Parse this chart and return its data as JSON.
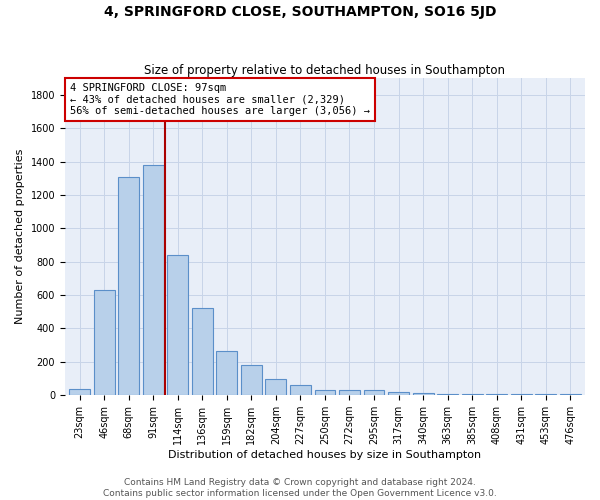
{
  "title": "4, SPRINGFORD CLOSE, SOUTHAMPTON, SO16 5JD",
  "subtitle": "Size of property relative to detached houses in Southampton",
  "xlabel": "Distribution of detached houses by size in Southampton",
  "ylabel": "Number of detached properties",
  "categories": [
    "23sqm",
    "46sqm",
    "68sqm",
    "91sqm",
    "114sqm",
    "136sqm",
    "159sqm",
    "182sqm",
    "204sqm",
    "227sqm",
    "250sqm",
    "272sqm",
    "295sqm",
    "317sqm",
    "340sqm",
    "363sqm",
    "385sqm",
    "408sqm",
    "431sqm",
    "453sqm",
    "476sqm"
  ],
  "values": [
    40,
    630,
    1310,
    1380,
    840,
    525,
    265,
    180,
    100,
    60,
    30,
    30,
    30,
    20,
    15,
    10,
    5,
    5,
    5,
    5,
    5
  ],
  "bar_color": "#b8d0ea",
  "bar_edge_color": "#5b8fc9",
  "marker_label": "4 SPRINGFORD CLOSE: 97sqm",
  "annotation_line1": "← 43% of detached houses are smaller (2,329)",
  "annotation_line2": "56% of semi-detached houses are larger (3,056) →",
  "annotation_box_color": "#ffffff",
  "annotation_box_edgecolor": "#cc0000",
  "vline_color": "#aa0000",
  "vline_x": 3.5,
  "ylim": [
    0,
    1900
  ],
  "yticks": [
    0,
    200,
    400,
    600,
    800,
    1000,
    1200,
    1400,
    1600,
    1800
  ],
  "grid_color": "#c8d4e8",
  "background_color": "#e8eef8",
  "footer1": "Contains HM Land Registry data © Crown copyright and database right 2024.",
  "footer2": "Contains public sector information licensed under the Open Government Licence v3.0.",
  "title_fontsize": 10,
  "subtitle_fontsize": 8.5,
  "xlabel_fontsize": 8,
  "ylabel_fontsize": 8,
  "tick_fontsize": 7,
  "footer_fontsize": 6.5,
  "annot_fontsize": 7.5
}
